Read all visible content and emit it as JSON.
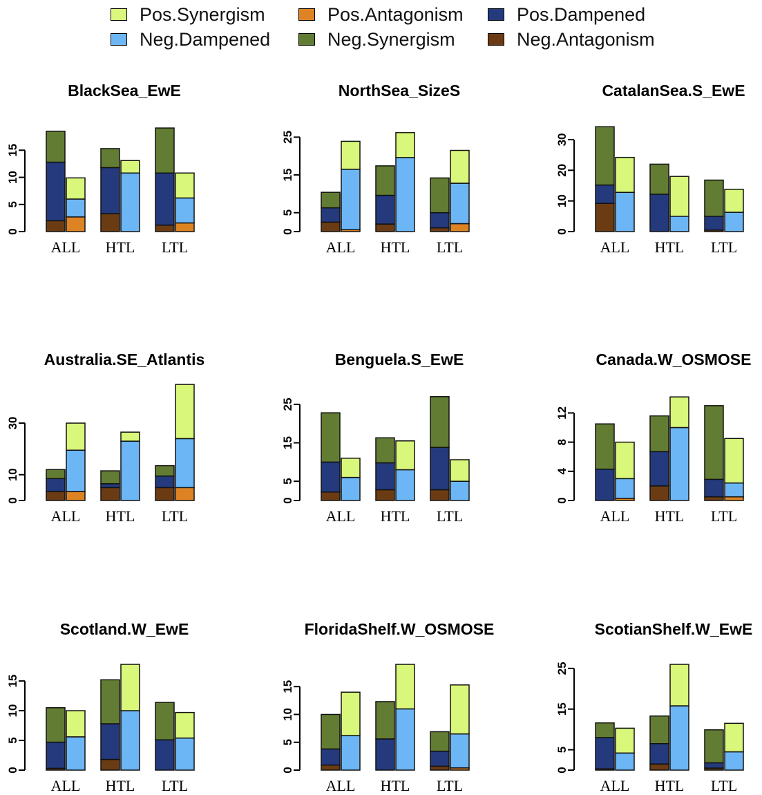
{
  "legend": [
    {
      "name": "Pos.Synergism",
      "color": "#d9f77b"
    },
    {
      "name": "Neg.Dampened",
      "color": "#6db6f5"
    },
    {
      "name": "Pos.Antagonism",
      "color": "#de8324"
    },
    {
      "name": "Neg.Synergism",
      "color": "#627d33"
    },
    {
      "name": "Pos.Dampened",
      "color": "#243a7c"
    },
    {
      "name": "Neg.Antagonism",
      "color": "#6b3c14"
    }
  ],
  "chart_data": [
    {
      "type": "bar",
      "stacked": true,
      "title": "BlackSea_EwE",
      "categories": [
        "ALL",
        "HTL",
        "LTL"
      ],
      "yticks": [
        0,
        5,
        10,
        15
      ],
      "ylim": [
        0,
        19.5
      ],
      "bars": [
        {
          "category": "ALL",
          "group": "Negative",
          "segments": {
            "Neg.Antagonism": 2.0,
            "Pos.Dampened": 10.8,
            "Neg.Synergism": 5.7
          }
        },
        {
          "category": "ALL",
          "group": "Positive",
          "segments": {
            "Pos.Antagonism": 2.7,
            "Neg.Dampened": 3.3,
            "Pos.Synergism": 3.9
          }
        },
        {
          "category": "HTL",
          "group": "Negative",
          "segments": {
            "Neg.Antagonism": 3.3,
            "Pos.Dampened": 8.5,
            "Neg.Synergism": 3.5
          }
        },
        {
          "category": "HTL",
          "group": "Positive",
          "segments": {
            "Pos.Antagonism": 0.0,
            "Neg.Dampened": 10.8,
            "Pos.Synergism": 2.3
          }
        },
        {
          "category": "LTL",
          "group": "Negative",
          "segments": {
            "Neg.Antagonism": 1.2,
            "Pos.Dampened": 9.6,
            "Neg.Synergism": 8.3
          }
        },
        {
          "category": "LTL",
          "group": "Positive",
          "segments": {
            "Pos.Antagonism": 1.6,
            "Neg.Dampened": 4.6,
            "Pos.Synergism": 4.6
          }
        }
      ]
    },
    {
      "type": "bar",
      "stacked": true,
      "title": "NorthSea_SizeS",
      "categories": [
        "ALL",
        "HTL",
        "LTL"
      ],
      "yticks": [
        0,
        5,
        15,
        25
      ],
      "ylim": [
        0,
        28
      ],
      "bars": [
        {
          "category": "ALL",
          "group": "Negative",
          "segments": {
            "Neg.Antagonism": 2.5,
            "Pos.Dampened": 3.8,
            "Neg.Synergism": 4.1
          }
        },
        {
          "category": "ALL",
          "group": "Positive",
          "segments": {
            "Pos.Antagonism": 0.5,
            "Neg.Dampened": 16.0,
            "Pos.Synergism": 7.4
          }
        },
        {
          "category": "HTL",
          "group": "Negative",
          "segments": {
            "Neg.Antagonism": 2.0,
            "Pos.Dampened": 7.6,
            "Neg.Synergism": 7.8
          }
        },
        {
          "category": "HTL",
          "group": "Positive",
          "segments": {
            "Pos.Antagonism": 0.0,
            "Neg.Dampened": 19.6,
            "Pos.Synergism": 6.6
          }
        },
        {
          "category": "LTL",
          "group": "Negative",
          "segments": {
            "Neg.Antagonism": 1.0,
            "Pos.Dampened": 4.0,
            "Neg.Synergism": 9.2
          }
        },
        {
          "category": "LTL",
          "group": "Positive",
          "segments": {
            "Pos.Antagonism": 2.1,
            "Neg.Dampened": 10.7,
            "Pos.Synergism": 8.7
          }
        }
      ]
    },
    {
      "type": "bar",
      "stacked": true,
      "title": "CatalanSea.S_EwE",
      "categories": [
        "ALL",
        "HTL",
        "LTL"
      ],
      "yticks": [
        0,
        10,
        20,
        30
      ],
      "ylim": [
        0,
        34.5
      ],
      "bars": [
        {
          "category": "ALL",
          "group": "Negative",
          "segments": {
            "Neg.Antagonism": 9.2,
            "Pos.Dampened": 6.0,
            "Neg.Synergism": 19.0
          }
        },
        {
          "category": "ALL",
          "group": "Positive",
          "segments": {
            "Pos.Antagonism": 0.0,
            "Neg.Dampened": 12.8,
            "Pos.Synergism": 11.4
          }
        },
        {
          "category": "HTL",
          "group": "Negative",
          "segments": {
            "Neg.Antagonism": 0.0,
            "Pos.Dampened": 12.2,
            "Neg.Synergism": 9.8
          }
        },
        {
          "category": "HTL",
          "group": "Positive",
          "segments": {
            "Pos.Antagonism": 0.0,
            "Neg.Dampened": 5.0,
            "Pos.Synergism": 13.0
          }
        },
        {
          "category": "LTL",
          "group": "Negative",
          "segments": {
            "Neg.Antagonism": 0.5,
            "Pos.Dampened": 4.5,
            "Neg.Synergism": 11.8
          }
        },
        {
          "category": "LTL",
          "group": "Positive",
          "segments": {
            "Pos.Antagonism": 0.0,
            "Neg.Dampened": 6.3,
            "Pos.Synergism": 7.5
          }
        }
      ]
    },
    {
      "type": "bar",
      "stacked": true,
      "title": "Australia.SE_Atlantis",
      "categories": [
        "ALL",
        "HTL",
        "LTL"
      ],
      "yticks": [
        0,
        10,
        30
      ],
      "ylim": [
        0,
        41
      ],
      "bars": [
        {
          "category": "ALL",
          "group": "Negative",
          "segments": {
            "Neg.Antagonism": 3.5,
            "Pos.Dampened": 5.0,
            "Neg.Synergism": 3.5
          }
        },
        {
          "category": "ALL",
          "group": "Positive",
          "segments": {
            "Pos.Antagonism": 3.5,
            "Neg.Dampened": 16.0,
            "Pos.Synergism": 10.5
          }
        },
        {
          "category": "HTL",
          "group": "Negative",
          "segments": {
            "Neg.Antagonism": 5.0,
            "Pos.Dampened": 1.5,
            "Neg.Synergism": 5.0
          }
        },
        {
          "category": "HTL",
          "group": "Positive",
          "segments": {
            "Pos.Antagonism": 0.0,
            "Neg.Dampened": 23.0,
            "Pos.Synergism": 3.5
          }
        },
        {
          "category": "LTL",
          "group": "Negative",
          "segments": {
            "Neg.Antagonism": 5.0,
            "Pos.Dampened": 4.5,
            "Neg.Synergism": 4.0
          }
        },
        {
          "category": "LTL",
          "group": "Positive",
          "segments": {
            "Pos.Antagonism": 5.0,
            "Neg.Dampened": 19.0,
            "Pos.Synergism": 21.0
          }
        }
      ]
    },
    {
      "type": "bar",
      "stacked": true,
      "title": "Benguela.S_EwE",
      "categories": [
        "ALL",
        "HTL",
        "LTL"
      ],
      "yticks": [
        0,
        5,
        15,
        25
      ],
      "ylim": [
        0,
        27.5
      ],
      "bars": [
        {
          "category": "ALL",
          "group": "Negative",
          "segments": {
            "Neg.Antagonism": 2.2,
            "Pos.Dampened": 7.8,
            "Neg.Synergism": 12.8
          }
        },
        {
          "category": "ALL",
          "group": "Positive",
          "segments": {
            "Pos.Antagonism": 0.0,
            "Neg.Dampened": 6.0,
            "Pos.Synergism": 5.0
          }
        },
        {
          "category": "HTL",
          "group": "Negative",
          "segments": {
            "Neg.Antagonism": 2.8,
            "Pos.Dampened": 7.0,
            "Neg.Synergism": 6.5
          }
        },
        {
          "category": "HTL",
          "group": "Positive",
          "segments": {
            "Pos.Antagonism": 0.0,
            "Neg.Dampened": 8.0,
            "Pos.Synergism": 7.5
          }
        },
        {
          "category": "LTL",
          "group": "Negative",
          "segments": {
            "Neg.Antagonism": 2.8,
            "Pos.Dampened": 11.0,
            "Neg.Synergism": 13.2
          }
        },
        {
          "category": "LTL",
          "group": "Positive",
          "segments": {
            "Pos.Antagonism": 0.0,
            "Neg.Dampened": 5.0,
            "Pos.Synergism": 5.6
          }
        }
      ]
    },
    {
      "type": "bar",
      "stacked": true,
      "title": "Canada.W_OSMOSE",
      "categories": [
        "ALL",
        "HTL",
        "LTL"
      ],
      "yticks": [
        0,
        4,
        8,
        12
      ],
      "ylim": [
        0,
        14.5
      ],
      "bars": [
        {
          "category": "ALL",
          "group": "Negative",
          "segments": {
            "Neg.Antagonism": 0.0,
            "Pos.Dampened": 4.3,
            "Neg.Synergism": 6.2
          }
        },
        {
          "category": "ALL",
          "group": "Positive",
          "segments": {
            "Pos.Antagonism": 0.3,
            "Neg.Dampened": 2.7,
            "Pos.Synergism": 5.0
          }
        },
        {
          "category": "HTL",
          "group": "Negative",
          "segments": {
            "Neg.Antagonism": 2.0,
            "Pos.Dampened": 4.7,
            "Neg.Synergism": 4.9
          }
        },
        {
          "category": "HTL",
          "group": "Positive",
          "segments": {
            "Pos.Antagonism": 0.0,
            "Neg.Dampened": 10.0,
            "Pos.Synergism": 4.2
          }
        },
        {
          "category": "LTL",
          "group": "Negative",
          "segments": {
            "Neg.Antagonism": 0.5,
            "Pos.Dampened": 2.4,
            "Neg.Synergism": 10.1
          }
        },
        {
          "category": "LTL",
          "group": "Positive",
          "segments": {
            "Pos.Antagonism": 0.5,
            "Neg.Dampened": 1.9,
            "Pos.Synergism": 6.1
          }
        }
      ]
    },
    {
      "type": "bar",
      "stacked": true,
      "title": "Scotland.W_EwE",
      "categories": [
        "ALL",
        "HTL",
        "LTL"
      ],
      "yticks": [
        0,
        5,
        10,
        15
      ],
      "ylim": [
        0,
        17.8
      ],
      "bars": [
        {
          "category": "ALL",
          "group": "Negative",
          "segments": {
            "Neg.Antagonism": 0.3,
            "Pos.Dampened": 4.4,
            "Neg.Synergism": 5.8
          }
        },
        {
          "category": "ALL",
          "group": "Positive",
          "segments": {
            "Pos.Antagonism": 0.0,
            "Neg.Dampened": 5.6,
            "Pos.Synergism": 4.4
          }
        },
        {
          "category": "HTL",
          "group": "Negative",
          "segments": {
            "Neg.Antagonism": 1.8,
            "Pos.Dampened": 6.0,
            "Neg.Synergism": 7.4
          }
        },
        {
          "category": "HTL",
          "group": "Positive",
          "segments": {
            "Pos.Antagonism": 0.0,
            "Neg.Dampened": 10.0,
            "Pos.Synergism": 7.8
          }
        },
        {
          "category": "LTL",
          "group": "Negative",
          "segments": {
            "Neg.Antagonism": 0.0,
            "Pos.Dampened": 5.1,
            "Neg.Synergism": 6.3
          }
        },
        {
          "category": "LTL",
          "group": "Positive",
          "segments": {
            "Pos.Antagonism": 0.0,
            "Neg.Dampened": 5.4,
            "Pos.Synergism": 4.3
          }
        }
      ]
    },
    {
      "type": "bar",
      "stacked": true,
      "title": "FloridaShelf.W_OSMOSE",
      "categories": [
        "ALL",
        "HTL",
        "LTL"
      ],
      "yticks": [
        0,
        5,
        10,
        15
      ],
      "ylim": [
        0,
        19
      ],
      "bars": [
        {
          "category": "ALL",
          "group": "Negative",
          "segments": {
            "Neg.Antagonism": 0.9,
            "Pos.Dampened": 2.9,
            "Neg.Synergism": 6.2
          }
        },
        {
          "category": "ALL",
          "group": "Positive",
          "segments": {
            "Pos.Antagonism": 0.0,
            "Neg.Dampened": 6.2,
            "Pos.Synergism": 7.8
          }
        },
        {
          "category": "HTL",
          "group": "Negative",
          "segments": {
            "Neg.Antagonism": 0.0,
            "Pos.Dampened": 5.6,
            "Neg.Synergism": 6.7
          }
        },
        {
          "category": "HTL",
          "group": "Positive",
          "segments": {
            "Pos.Antagonism": 0.0,
            "Neg.Dampened": 11.0,
            "Pos.Synergism": 8.0
          }
        },
        {
          "category": "LTL",
          "group": "Negative",
          "segments": {
            "Neg.Antagonism": 0.7,
            "Pos.Dampened": 2.7,
            "Neg.Synergism": 3.5
          }
        },
        {
          "category": "LTL",
          "group": "Positive",
          "segments": {
            "Pos.Antagonism": 0.4,
            "Neg.Dampened": 6.1,
            "Pos.Synergism": 8.8
          }
        }
      ]
    },
    {
      "type": "bar",
      "stacked": true,
      "title": "ScotianShelf.W_EwE",
      "categories": [
        "ALL",
        "HTL",
        "LTL"
      ],
      "yticks": [
        0,
        5,
        15,
        25
      ],
      "ylim": [
        0,
        26
      ],
      "bars": [
        {
          "category": "ALL",
          "group": "Negative",
          "segments": {
            "Neg.Antagonism": 0.3,
            "Pos.Dampened": 7.7,
            "Neg.Synergism": 3.6
          }
        },
        {
          "category": "ALL",
          "group": "Positive",
          "segments": {
            "Pos.Antagonism": 0.0,
            "Neg.Dampened": 4.2,
            "Pos.Synergism": 6.1
          }
        },
        {
          "category": "HTL",
          "group": "Negative",
          "segments": {
            "Neg.Antagonism": 1.5,
            "Pos.Dampened": 5.0,
            "Neg.Synergism": 6.8
          }
        },
        {
          "category": "HTL",
          "group": "Positive",
          "segments": {
            "Pos.Antagonism": 0.0,
            "Neg.Dampened": 15.8,
            "Pos.Synergism": 10.2
          }
        },
        {
          "category": "LTL",
          "group": "Negative",
          "segments": {
            "Neg.Antagonism": 0.5,
            "Pos.Dampened": 1.3,
            "Neg.Synergism": 8.1
          }
        },
        {
          "category": "LTL",
          "group": "Positive",
          "segments": {
            "Pos.Antagonism": 0.0,
            "Neg.Dampened": 4.5,
            "Pos.Synergism": 7.0
          }
        }
      ]
    }
  ]
}
